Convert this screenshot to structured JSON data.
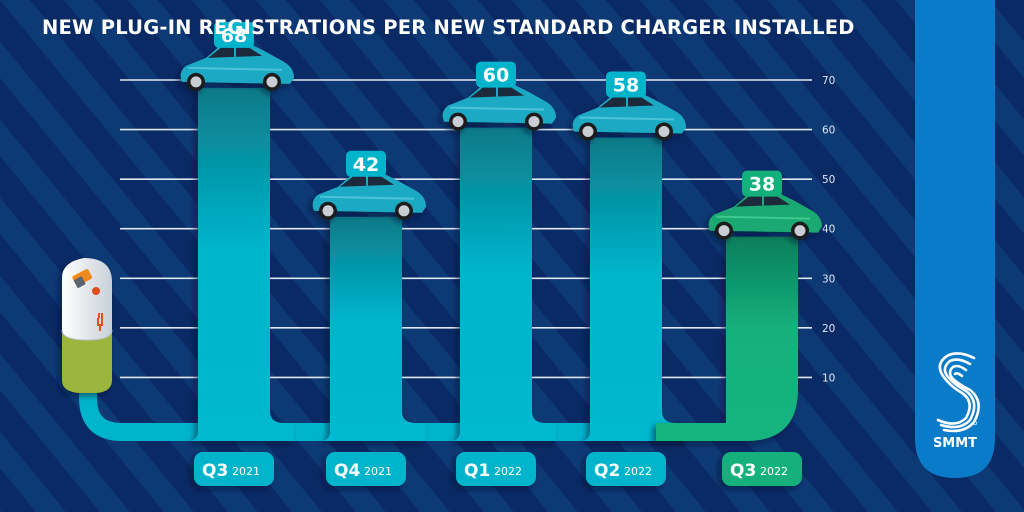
{
  "header": {
    "title": "NEW PLUG-IN REGISTRATIONS PER NEW STANDARD CHARGER INSTALLED"
  },
  "brand": {
    "name": "SMMT",
    "logo_icon": "smmt-s-logo-icon",
    "panel_color": "#0a7bc8"
  },
  "colors": {
    "background": "#0a2a66",
    "stripe": "#10457f",
    "bar_default": "#00b4cc",
    "bar_highlight": "#14b07c",
    "gridline": "#dfe7f3",
    "charger_body": "#e6eaee",
    "charger_base": "#9cb63c",
    "plug_icon": "#e0501e"
  },
  "chart_data": {
    "type": "bar",
    "title": "NEW PLUG-IN REGISTRATIONS PER NEW STANDARD CHARGER INSTALLED",
    "xlabel": "",
    "ylabel": "",
    "categories": [
      {
        "quarter": "Q3",
        "year": "2021"
      },
      {
        "quarter": "Q4",
        "year": "2021"
      },
      {
        "quarter": "Q1",
        "year": "2022"
      },
      {
        "quarter": "Q2",
        "year": "2022"
      },
      {
        "quarter": "Q3",
        "year": "2022"
      }
    ],
    "values": [
      68,
      42,
      60,
      58,
      38
    ],
    "highlight_index": 4,
    "ylim": [
      0,
      70
    ],
    "yticks": [
      10,
      20,
      30,
      40,
      50,
      60,
      70
    ],
    "ytick_side": "right",
    "grid": true,
    "legend": "none",
    "data_labels": [
      "68",
      "42",
      "60",
      "58",
      "38"
    ],
    "decorations": {
      "bar_top_icon": "car-icon",
      "origin_icon": "ev-charger-icon"
    }
  }
}
